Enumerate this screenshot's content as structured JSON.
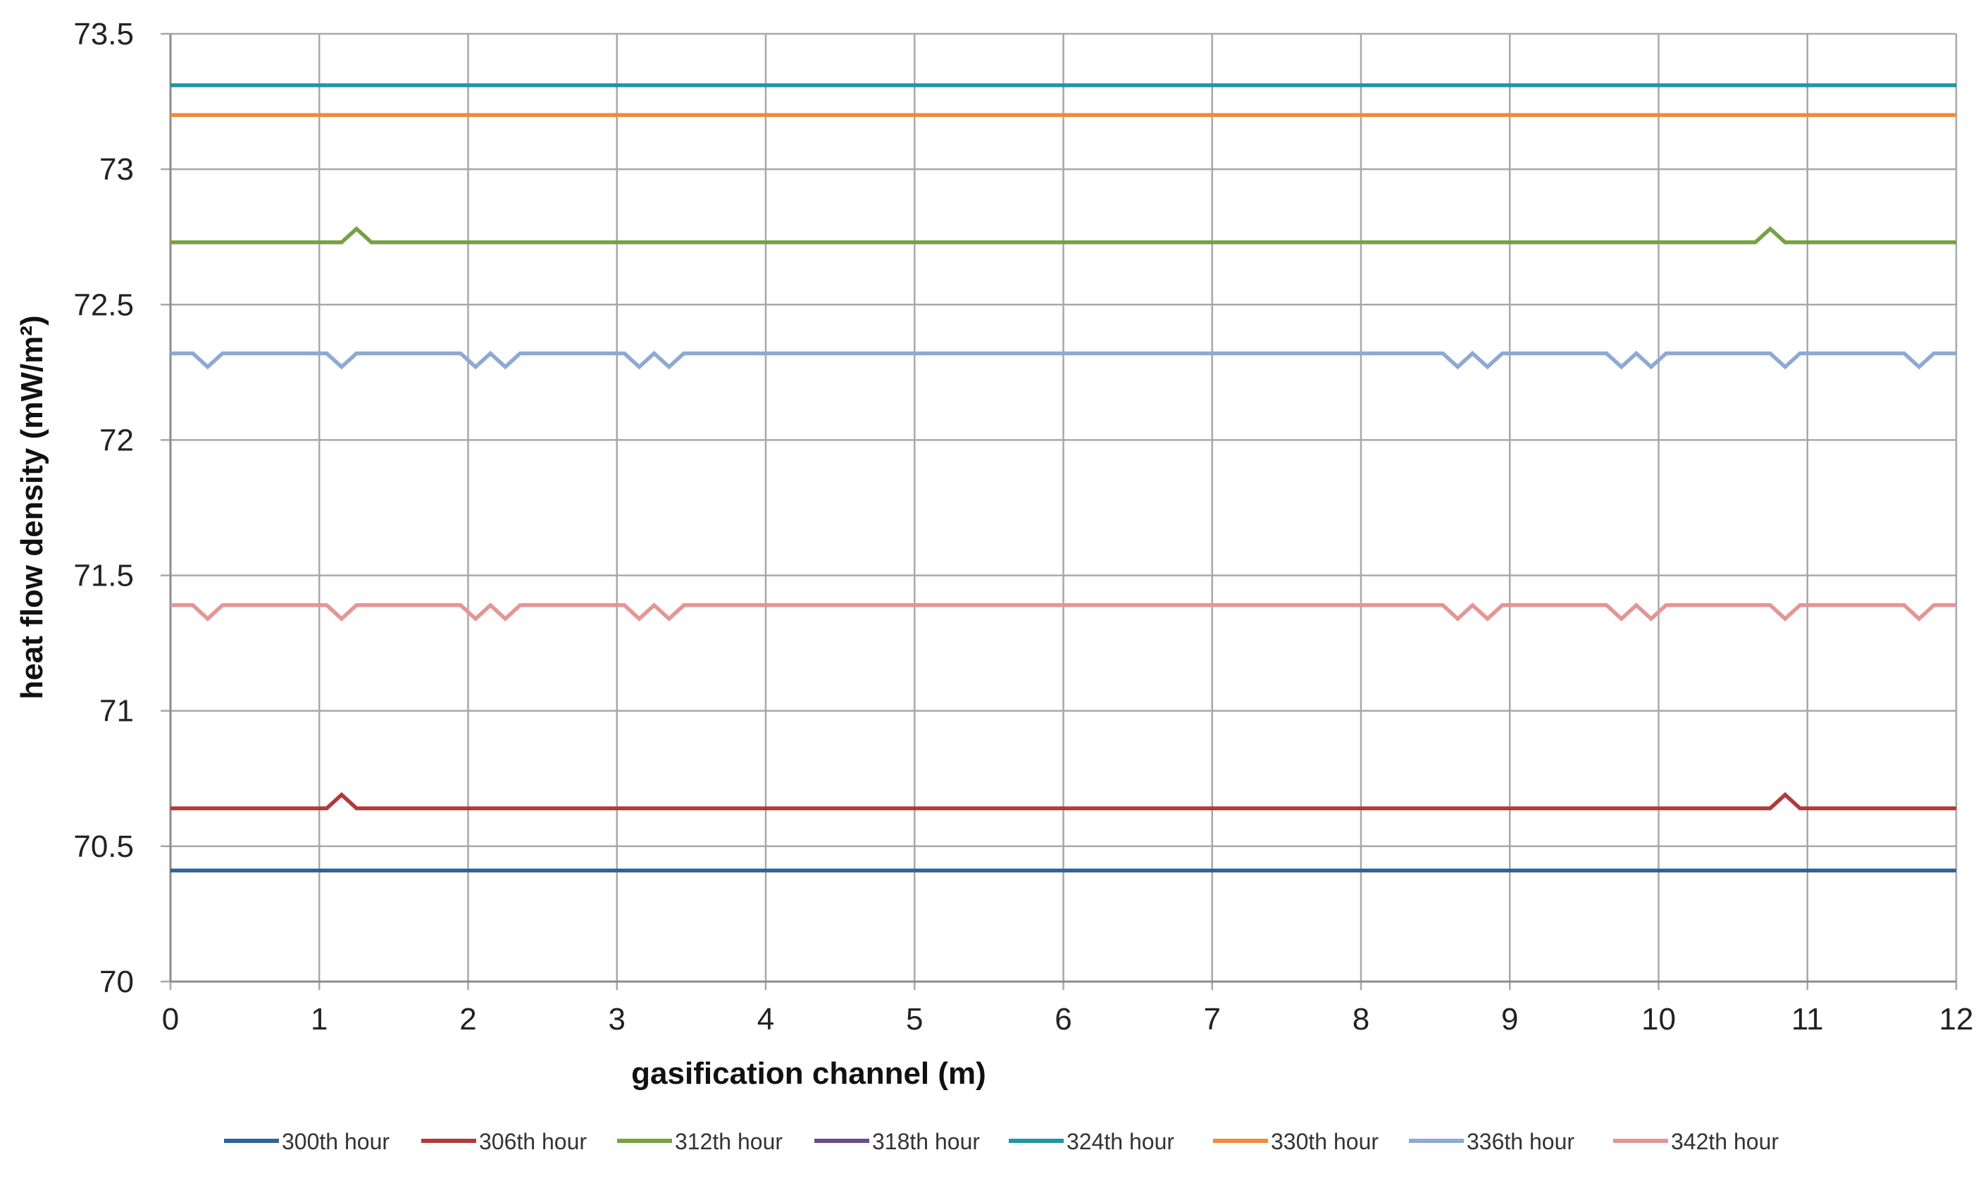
{
  "chart_data": {
    "type": "line",
    "title": "",
    "xlabel": "gasification channel  (m)",
    "ylabel": "heat flow density (mW/m²)",
    "xlim": [
      0,
      12
    ],
    "ylim": [
      70,
      73.5
    ],
    "xticks": [
      "0",
      "1",
      "2",
      "3",
      "4",
      "5",
      "6",
      "7",
      "8",
      "9",
      "10",
      "11",
      "12"
    ],
    "yticks": [
      "70",
      "70.5",
      "71",
      "71.5",
      "72",
      "72.5",
      "73",
      "73.5"
    ],
    "grid": true,
    "legend_position": "bottom",
    "series": [
      {
        "name": "300th hour",
        "color": "#2E6496",
        "points": [
          [
            0,
            70.41
          ],
          [
            12,
            70.41
          ]
        ]
      },
      {
        "name": "306th hour",
        "color": "#B03A3A",
        "points": [
          [
            0,
            70.64
          ],
          [
            1.05,
            70.64
          ],
          [
            1.15,
            70.69
          ],
          [
            1.25,
            70.64
          ],
          [
            10.75,
            70.64
          ],
          [
            10.85,
            70.69
          ],
          [
            10.95,
            70.64
          ],
          [
            12,
            70.64
          ]
        ]
      },
      {
        "name": "312th hour",
        "color": "#77A043",
        "points": [
          [
            0,
            72.73
          ],
          [
            1.15,
            72.73
          ],
          [
            1.25,
            72.78
          ],
          [
            1.35,
            72.73
          ],
          [
            10.65,
            72.73
          ],
          [
            10.75,
            72.78
          ],
          [
            10.85,
            72.73
          ],
          [
            12,
            72.73
          ]
        ]
      },
      {
        "name": "318th hour",
        "color": "#6A4C93",
        "points": []
      },
      {
        "name": "324th hour",
        "color": "#1F95A8",
        "points": [
          [
            0,
            73.31
          ],
          [
            12,
            73.31
          ]
        ]
      },
      {
        "name": "330th hour",
        "color": "#F08A3C",
        "points": [
          [
            0,
            73.2
          ],
          [
            12,
            73.2
          ]
        ]
      },
      {
        "name": "336th hour",
        "color": "#8EA9D2",
        "points": [
          [
            0,
            72.32
          ],
          [
            0.15,
            72.32
          ],
          [
            0.25,
            72.27
          ],
          [
            0.35,
            72.32
          ],
          [
            1.05,
            72.32
          ],
          [
            1.15,
            72.27
          ],
          [
            1.25,
            72.32
          ],
          [
            1.95,
            72.32
          ],
          [
            2.05,
            72.27
          ],
          [
            2.15,
            72.32
          ],
          [
            2.25,
            72.27
          ],
          [
            2.35,
            72.32
          ],
          [
            3.05,
            72.32
          ],
          [
            3.15,
            72.27
          ],
          [
            3.25,
            72.32
          ],
          [
            3.35,
            72.27
          ],
          [
            3.45,
            72.32
          ],
          [
            8.55,
            72.32
          ],
          [
            8.65,
            72.27
          ],
          [
            8.75,
            72.32
          ],
          [
            8.85,
            72.27
          ],
          [
            8.95,
            72.32
          ],
          [
            9.65,
            72.32
          ],
          [
            9.75,
            72.27
          ],
          [
            9.85,
            72.32
          ],
          [
            9.95,
            72.27
          ],
          [
            10.05,
            72.32
          ],
          [
            10.75,
            72.32
          ],
          [
            10.85,
            72.27
          ],
          [
            10.95,
            72.32
          ],
          [
            11.65,
            72.32
          ],
          [
            11.75,
            72.27
          ],
          [
            11.85,
            72.32
          ],
          [
            12,
            72.32
          ]
        ]
      },
      {
        "name": "342th hour",
        "color": "#E39695",
        "points": [
          [
            0,
            71.39
          ],
          [
            0.15,
            71.39
          ],
          [
            0.25,
            71.34
          ],
          [
            0.35,
            71.39
          ],
          [
            1.05,
            71.39
          ],
          [
            1.15,
            71.34
          ],
          [
            1.25,
            71.39
          ],
          [
            1.95,
            71.39
          ],
          [
            2.05,
            71.34
          ],
          [
            2.15,
            71.39
          ],
          [
            2.25,
            71.34
          ],
          [
            2.35,
            71.39
          ],
          [
            3.05,
            71.39
          ],
          [
            3.15,
            71.34
          ],
          [
            3.25,
            71.39
          ],
          [
            3.35,
            71.34
          ],
          [
            3.45,
            71.39
          ],
          [
            8.55,
            71.39
          ],
          [
            8.65,
            71.34
          ],
          [
            8.75,
            71.39
          ],
          [
            8.85,
            71.34
          ],
          [
            8.95,
            71.39
          ],
          [
            9.65,
            71.39
          ],
          [
            9.75,
            71.34
          ],
          [
            9.85,
            71.39
          ],
          [
            9.95,
            71.34
          ],
          [
            10.05,
            71.39
          ],
          [
            10.75,
            71.39
          ],
          [
            10.85,
            71.34
          ],
          [
            10.95,
            71.39
          ],
          [
            11.65,
            71.39
          ],
          [
            11.75,
            71.34
          ],
          [
            11.85,
            71.39
          ],
          [
            12,
            71.39
          ]
        ]
      }
    ]
  }
}
